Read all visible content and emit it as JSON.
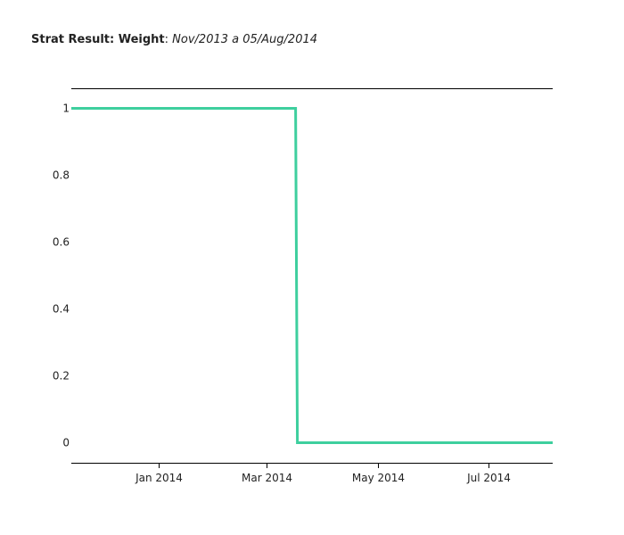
{
  "title": {
    "bold": "Strat Result: Weight",
    "separator": ":",
    "italic": "Nov/2013 a 05/Aug/2014"
  },
  "chart_data": {
    "type": "line",
    "xlim": [
      "2013-11-14",
      "2014-08-05"
    ],
    "ylim": [
      -0.06,
      1.06
    ],
    "x_ticks": [
      {
        "date": "2014-01-01",
        "label": "Jan 2014"
      },
      {
        "date": "2014-03-01",
        "label": "Mar 2014"
      },
      {
        "date": "2014-05-01",
        "label": "May 2014"
      },
      {
        "date": "2014-07-01",
        "label": "Jul 2014"
      }
    ],
    "y_ticks": [
      {
        "value": 1,
        "label": "1"
      },
      {
        "value": 0.8,
        "label": "0.8"
      },
      {
        "value": 0.6,
        "label": "0.6"
      },
      {
        "value": 0.4,
        "label": "0.4"
      },
      {
        "value": 0.2,
        "label": "0.2"
      },
      {
        "value": 0,
        "label": "0"
      }
    ],
    "series": [
      {
        "color": "#3ecf9e",
        "x": [
          "2013-11-14",
          "2014-03-17",
          "2014-03-18",
          "2014-08-05"
        ],
        "y": [
          1,
          1,
          0,
          0
        ]
      }
    ],
    "grid": false
  }
}
